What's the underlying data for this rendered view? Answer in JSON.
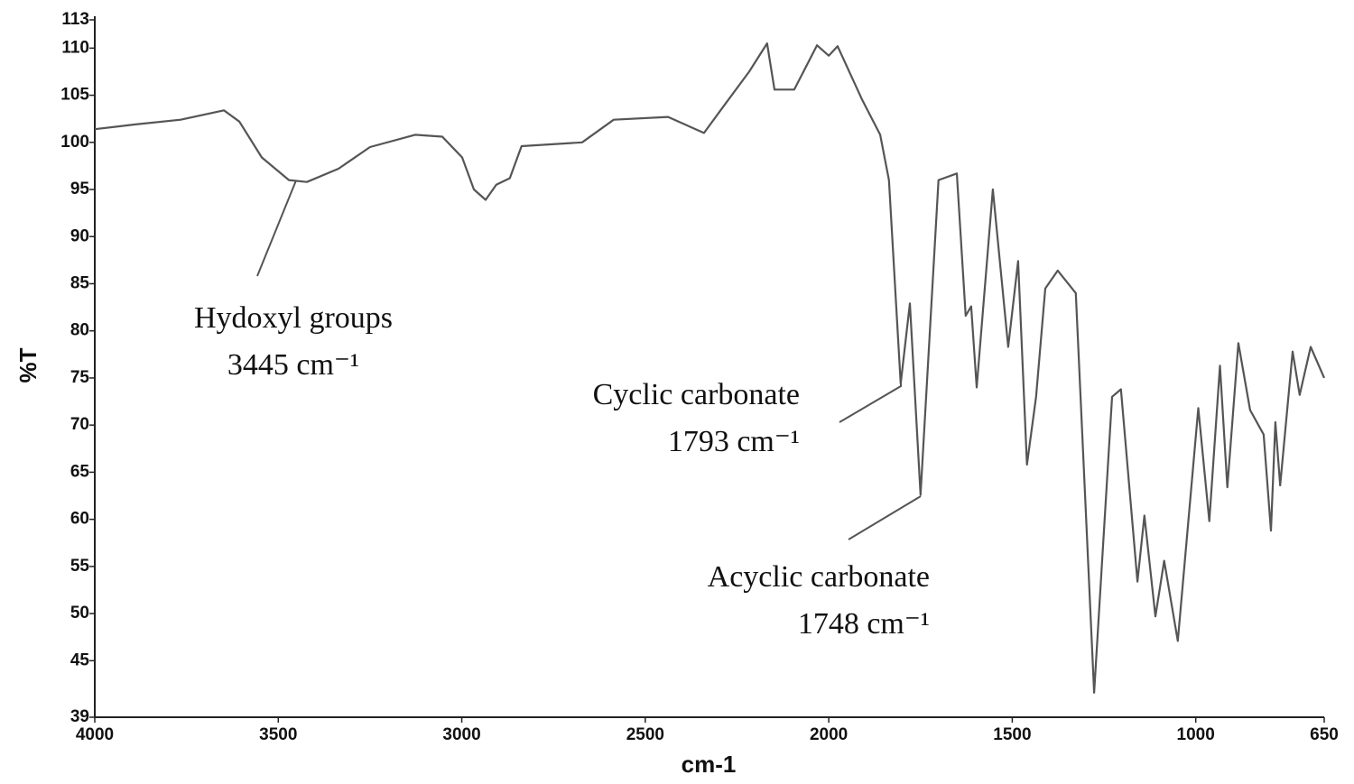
{
  "chart_data": {
    "type": "line",
    "xlabel": "cm-1",
    "ylabel": "%T",
    "xlim": [
      4000,
      650
    ],
    "ylim": [
      39,
      113
    ],
    "xticks": [
      4000,
      3500,
      3000,
      2500,
      2000,
      1500,
      1000,
      650
    ],
    "yticks": [
      39,
      45,
      50,
      55,
      60,
      65,
      70,
      75,
      80,
      85,
      90,
      95,
      100,
      105,
      110,
      113
    ],
    "series": [
      {
        "color": "#555555",
        "x": [
          4000,
          3889,
          3766,
          3648,
          3606,
          3545,
          3471,
          3422,
          3336,
          3250,
          3127,
          3053,
          2999,
          2967,
          2935,
          2906,
          2869,
          2837,
          2672,
          2586,
          2438,
          2340,
          2291,
          2217,
          2168,
          2148,
          2094,
          2032,
          2000,
          1976,
          1910,
          1860,
          1836,
          1804,
          1779,
          1750,
          1701,
          1651,
          1627,
          1612,
          1597,
          1553,
          1511,
          1484,
          1460,
          1435,
          1410,
          1376,
          1327,
          1277,
          1228,
          1204,
          1159,
          1140,
          1110,
          1086,
          1049,
          993,
          963,
          934,
          914,
          884,
          852,
          815,
          795,
          783,
          770,
          736,
          717,
          687,
          650
        ],
        "values": [
          101.4,
          101.9,
          102.4,
          103.4,
          102.2,
          98.4,
          96.0,
          95.8,
          97.2,
          99.5,
          100.8,
          100.6,
          98.4,
          95.0,
          93.9,
          95.5,
          96.2,
          99.6,
          100.0,
          102.4,
          102.7,
          101.0,
          103.6,
          107.5,
          110.5,
          105.6,
          105.6,
          110.3,
          109.2,
          110.2,
          104.6,
          100.8,
          96.0,
          74.4,
          82.9,
          62.6,
          96.0,
          96.7,
          81.6,
          82.6,
          74.0,
          95.0,
          78.3,
          87.4,
          65.8,
          73.0,
          84.5,
          86.4,
          84.0,
          41.6,
          73.0,
          73.8,
          53.4,
          60.4,
          49.7,
          55.6,
          47.1,
          71.8,
          59.8,
          76.3,
          63.4,
          78.7,
          71.6,
          69.0,
          58.8,
          70.3,
          63.6,
          77.8,
          73.2,
          78.3,
          75.0
        ]
      }
    ],
    "annotations": [
      {
        "label": "Hydoxyl groups",
        "sublabel": "3445 cm⁻¹"
      },
      {
        "label": "Cyclic carbonate",
        "sublabel": "1793 cm⁻¹"
      },
      {
        "label": "Acyclic carbonate",
        "sublabel": "1748 cm⁻¹"
      }
    ]
  }
}
